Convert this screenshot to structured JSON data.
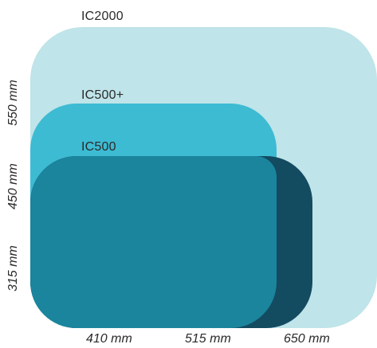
{
  "models": [
    {
      "name": "IC2000",
      "color": "#bfe4e9"
    },
    {
      "name": "IC500+",
      "color": "#3dbbd3"
    },
    {
      "name": "IC500",
      "color": "#134b61"
    }
  ],
  "overlap_color": "#1b859d",
  "widths": [
    "410 mm",
    "515 mm",
    "650 mm"
  ],
  "heights": [
    "550 mm",
    "450 mm",
    "315 mm"
  ]
}
